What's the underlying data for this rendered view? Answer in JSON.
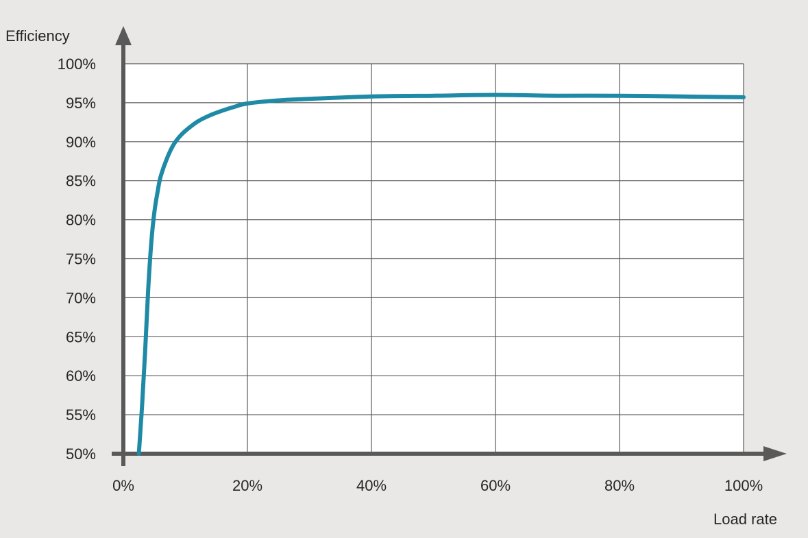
{
  "chart_data": {
    "type": "line",
    "title": "",
    "ylabel": "Efficiency",
    "xlabel": "Load rate",
    "xlim": [
      0,
      100
    ],
    "ylim": [
      50,
      100
    ],
    "x_ticks": [
      "0%",
      "20%",
      "40%",
      "60%",
      "80%",
      "100%"
    ],
    "y_ticks": [
      "100%",
      "95%",
      "90%",
      "85%",
      "80%",
      "75%",
      "70%",
      "65%",
      "60%",
      "55%",
      "50%"
    ],
    "grid": true,
    "legend": "none",
    "series": [
      {
        "x": [
          2.5,
          3,
          3.5,
          4,
          4.5,
          5,
          5.5,
          6,
          7,
          8,
          9,
          10,
          12,
          14,
          16,
          18,
          20,
          25,
          30,
          40,
          50,
          60,
          70,
          80,
          90,
          100
        ],
        "y": [
          50,
          56,
          63,
          71,
          77,
          81,
          83.5,
          85.5,
          87.8,
          89.5,
          90.6,
          91.4,
          92.6,
          93.4,
          94.0,
          94.5,
          94.9,
          95.3,
          95.5,
          95.8,
          95.9,
          96.0,
          95.9,
          95.9,
          95.8,
          95.7
        ],
        "color": "#1f8aa6"
      }
    ],
    "colors": {
      "background": "#e9e8e6",
      "plot_area": "#ffffff",
      "grid": "#5a5a5a",
      "axis": "#595959",
      "series": "#1f8aa6"
    }
  }
}
